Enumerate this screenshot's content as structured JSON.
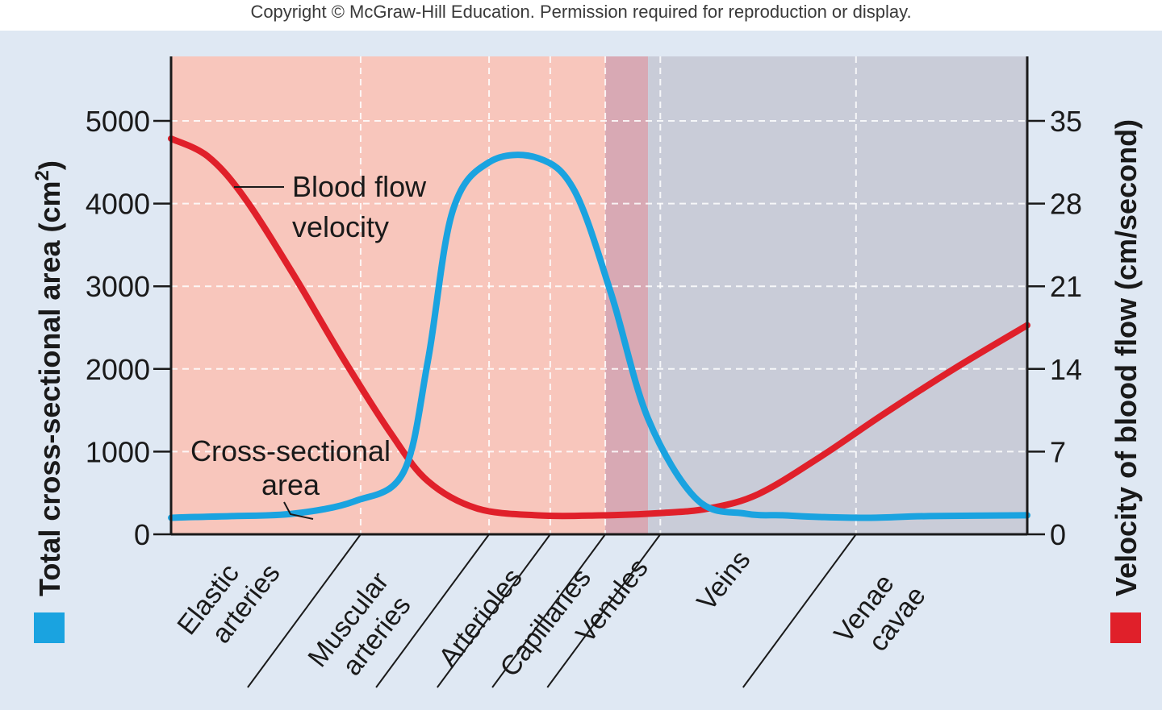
{
  "copyright": "Copyright © McGraw-Hill Education. Permission required for reproduction or display.",
  "colors": {
    "area_series": "#1aa3e0",
    "velocity_series": "#e0202a",
    "arterial_bg": "#f8c6bc",
    "capillary_bg": "#d8a9b4",
    "venous_bg": "#c9ccd8",
    "panel_bg": "#dfe8f3"
  },
  "chart_data": {
    "type": "line",
    "title": "",
    "x_categories": [
      "Elastic arteries",
      "Muscular arteries",
      "Arterioles",
      "Capillaries",
      "Venules",
      "Veins",
      "Venae cavae"
    ],
    "category_labels": [
      [
        "Elastic",
        "arteries"
      ],
      [
        "Muscular",
        "arteries"
      ],
      [
        "Arterioles"
      ],
      [
        "Capillaries"
      ],
      [
        "Venules"
      ],
      [
        "Veins"
      ],
      [
        "Venae",
        "cavae"
      ]
    ],
    "y_left": {
      "label": "Total cross-sectional area (cm²)",
      "label_main": "Total cross-sectional area (cm",
      "label_sup": "2",
      "label_close": ")",
      "ylim": [
        0,
        5000
      ],
      "ticks": [
        0,
        1000,
        2000,
        3000,
        4000,
        5000
      ],
      "tick_labels": [
        "0",
        "1000",
        "2000",
        "3000",
        "4000",
        "5000"
      ]
    },
    "y_right": {
      "label": "Velocity of blood flow (cm/second)",
      "ylim": [
        0,
        35
      ],
      "ticks": [
        0,
        7,
        14,
        21,
        28,
        35
      ],
      "tick_labels": [
        "0",
        "7",
        "14",
        "21",
        "28",
        "35"
      ]
    },
    "series": [
      {
        "name": "Cross-sectional area",
        "axis": "left",
        "annotation": [
          "Cross-sectional",
          "area"
        ],
        "x": [
          0.0,
          0.2,
          0.5,
          1.0,
          1.5,
          1.9,
          2.1,
          2.3,
          2.6,
          3.0,
          3.3,
          3.6,
          3.9,
          4.3,
          4.7,
          5.0,
          5.3,
          5.7,
          6.2,
          7.0
        ],
        "y": [
          200,
          210,
          220,
          250,
          400,
          750,
          2100,
          3900,
          4500,
          4550,
          4150,
          2900,
          1400,
          420,
          250,
          230,
          210,
          200,
          220,
          230
        ]
      },
      {
        "name": "Blood flow velocity",
        "axis": "right",
        "annotation": [
          "Blood flow",
          "velocity"
        ],
        "x": [
          0.0,
          0.3,
          0.6,
          1.0,
          1.4,
          1.8,
          2.1,
          2.5,
          3.0,
          3.5,
          4.0,
          4.4,
          4.8,
          5.3,
          5.8,
          6.4,
          7.0
        ],
        "y": [
          33.5,
          32.0,
          28.5,
          22.0,
          15.0,
          8.5,
          4.5,
          2.2,
          1.6,
          1.6,
          1.8,
          2.2,
          3.4,
          6.5,
          10.0,
          14.0,
          17.7
        ]
      }
    ],
    "legend": [
      {
        "series": "Cross-sectional area",
        "position": "bottom-left"
      },
      {
        "series": "Blood flow velocity",
        "position": "bottom-right"
      }
    ],
    "grid": true
  }
}
